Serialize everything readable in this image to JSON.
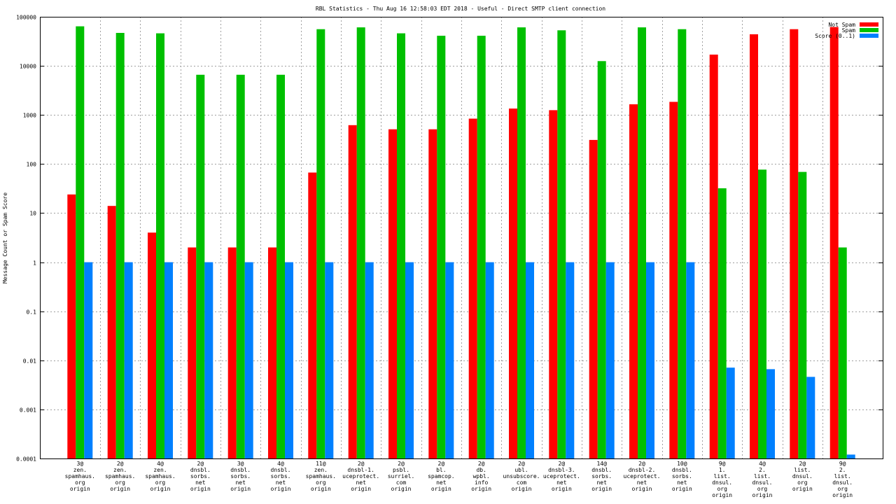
{
  "chart_data": {
    "type": "bar",
    "title": "RBL Statistics - Thu Aug 16 12:58:03 EDT 2018 - Useful - Direct SMTP client connection",
    "xlabel": "",
    "ylabel": "Message Count or Spam Score",
    "yscale": "log",
    "ylim": [
      0.0001,
      100000
    ],
    "yticks": [
      "0.0001",
      "0.001",
      "0.01",
      "0.1",
      "1",
      "10",
      "100",
      "1000",
      "10000",
      "100000"
    ],
    "grid": true,
    "legend_position": "top-right",
    "categories": [
      [
        "3@",
        "zen.",
        "spamhaus.",
        "org",
        "origin"
      ],
      [
        "2@",
        "zen.",
        "spamhaus.",
        "org",
        "origin"
      ],
      [
        "4@",
        "zen.",
        "spamhaus.",
        "org",
        "origin"
      ],
      [
        "2@",
        "dnsbl.",
        "sorbs.",
        "net",
        "origin"
      ],
      [
        "3@",
        "dnsbl.",
        "sorbs.",
        "net",
        "origin"
      ],
      [
        "4@",
        "dnsbl.",
        "sorbs.",
        "net",
        "origin"
      ],
      [
        "11@",
        "zen.",
        "spamhaus.",
        "org",
        "origin"
      ],
      [
        "2@",
        "dnsbl-1.",
        "uceprotect.",
        "net",
        "origin"
      ],
      [
        "2@",
        "psbl.",
        "surriel.",
        "com",
        "origin"
      ],
      [
        "2@",
        "bl.",
        "spamcop.",
        "net",
        "origin"
      ],
      [
        "2@",
        "db.",
        "wpbl.",
        "info",
        "origin"
      ],
      [
        "2@",
        "ubl.",
        "unsubscore.",
        "com",
        "origin"
      ],
      [
        "2@",
        "dnsbl-3.",
        "uceprotect.",
        "net",
        "origin"
      ],
      [
        "14@",
        "dnsbl.",
        "sorbs.",
        "net",
        "origin"
      ],
      [
        "2@",
        "dnsbl-2.",
        "uceprotect.",
        "net",
        "origin"
      ],
      [
        "10@",
        "dnsbl.",
        "sorbs.",
        "net",
        "origin"
      ],
      [
        "9@",
        "1.",
        "list.",
        "dnsul.",
        "org",
        "origin"
      ],
      [
        "4@",
        "2.",
        "list.",
        "dnsul.",
        "org",
        "origin"
      ],
      [
        "2@",
        "list.",
        "dnsul.",
        "org",
        "origin"
      ],
      [
        "9@",
        "2.",
        "list.",
        "dnsul.",
        "org",
        "origin"
      ]
    ],
    "series": [
      {
        "name": "Not Spam",
        "color": "#ff0000",
        "values": [
          24,
          14,
          4,
          2,
          2,
          2,
          67,
          620,
          510,
          510,
          840,
          1350,
          1250,
          310,
          1650,
          1850,
          17000,
          44000,
          56000,
          62000
        ]
      },
      {
        "name": "Spam",
        "color": "#00c000",
        "values": [
          64000,
          47000,
          46000,
          6600,
          6600,
          6600,
          56000,
          61000,
          46000,
          41000,
          41000,
          61000,
          53000,
          12500,
          61000,
          56000,
          32,
          77,
          69,
          2
        ]
      },
      {
        "name": "Score (0..1)",
        "color": "#0080ff",
        "values": [
          1,
          1,
          1,
          1,
          1,
          1,
          1,
          1,
          1,
          1,
          1,
          1,
          1,
          1,
          1,
          1,
          0.0071,
          0.0066,
          0.0046,
          0.00012
        ]
      }
    ]
  }
}
